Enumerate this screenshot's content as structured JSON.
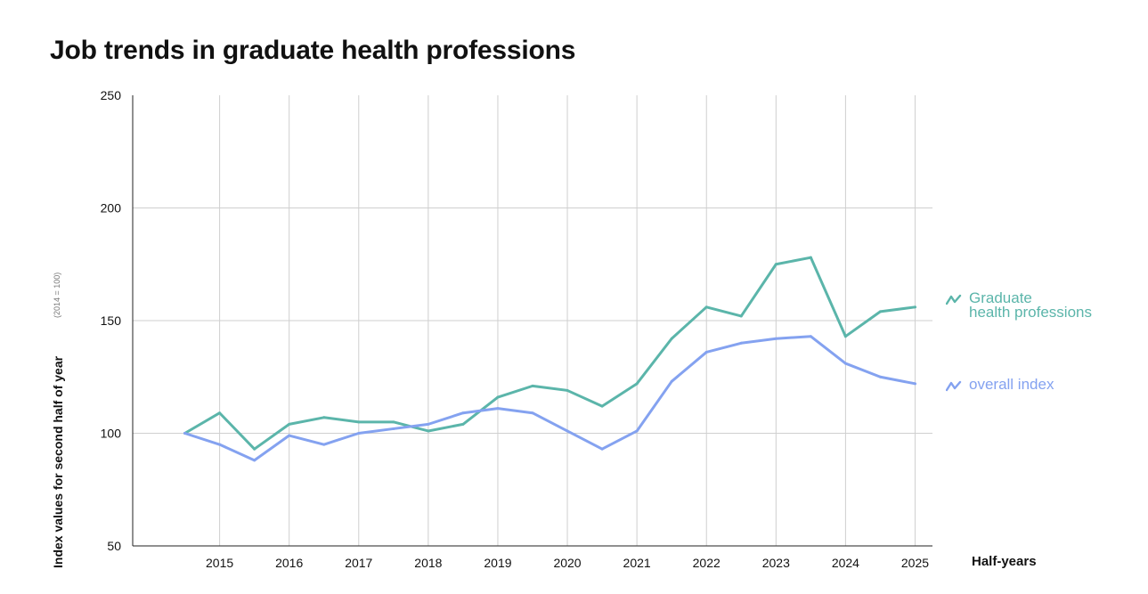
{
  "chart_data": {
    "type": "line",
    "title": "Job trends in graduate health professions",
    "ylabel": "Index values for second half of year",
    "ylabel_note": "(2014 = 100)",
    "xlabel": "Half-years",
    "x_tick_labels": [
      "2015",
      "2016",
      "2017",
      "2018",
      "2019",
      "2020",
      "2021",
      "2022",
      "2023",
      "2024",
      "2025"
    ],
    "x": [
      2014.5,
      2015,
      2015.5,
      2016,
      2016.5,
      2017,
      2017.5,
      2018,
      2018.5,
      2019,
      2019.5,
      2020,
      2020.5,
      2021,
      2021.5,
      2022,
      2022.5,
      2023,
      2023.5,
      2024,
      2024.5,
      2025
    ],
    "xlim": [
      2013.75,
      2025.25
    ],
    "ylim": [
      50,
      250
    ],
    "y_ticks": [
      50,
      100,
      150,
      200,
      250
    ],
    "series": [
      {
        "name": "Graduate health professions",
        "color": "#5bb5aa",
        "values": [
          100,
          109,
          93,
          104,
          107,
          105,
          105,
          101,
          104,
          116,
          121,
          119,
          112,
          122,
          142,
          156,
          152,
          175,
          178,
          143,
          154,
          156
        ]
      },
      {
        "name": "overall index",
        "color": "#84a2f0",
        "values": [
          100,
          95,
          88,
          99,
          95,
          100,
          102,
          104,
          109,
          111,
          109,
          101,
          93,
          101,
          123,
          136,
          140,
          142,
          143,
          131,
          125,
          122
        ]
      }
    ],
    "legend": [
      {
        "label_line1": "Graduate",
        "label_line2": "health professions",
        "color": "#5bb5aa",
        "value_at_end": 156
      },
      {
        "label_line1": "overall index",
        "label_line2": "",
        "color": "#84a2f0",
        "value_at_end": 122
      }
    ]
  }
}
